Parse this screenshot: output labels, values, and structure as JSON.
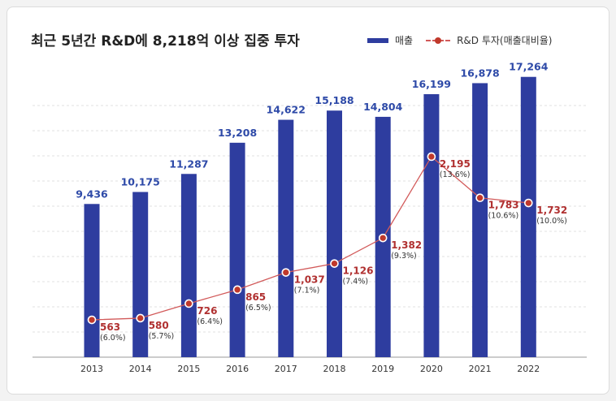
{
  "title": "최근 5년간 R&D에 8,218억 이상 집중 투자",
  "legend": {
    "revenue": "매출",
    "rd": "R&D 투자(매출대비율)"
  },
  "colors": {
    "bar": "#2e3d9f",
    "bar_label": "#2e4aa8",
    "line": "#d25a5a",
    "rd_label": "#b03030"
  },
  "chart_data": {
    "type": "bar",
    "categories": [
      "2013",
      "2014",
      "2015",
      "2016",
      "2017",
      "2018",
      "2019",
      "2020",
      "2021",
      "2022"
    ],
    "series": [
      {
        "name": "매출",
        "type": "bar",
        "values": [
          9436,
          10175,
          11287,
          13208,
          14622,
          15188,
          14804,
          16199,
          16878,
          17264
        ],
        "labels": [
          "9,436",
          "10,175",
          "11,287",
          "13,208",
          "14,622",
          "15,188",
          "14,804",
          "16,199",
          "16,878",
          "17,264"
        ]
      },
      {
        "name": "R&D 투자(매출대비율)",
        "type": "line",
        "values": [
          563,
          580,
          726,
          865,
          1037,
          1126,
          1382,
          2195,
          1783,
          1732
        ],
        "labels": [
          "563",
          "580",
          "726",
          "865",
          "1,037",
          "1,126",
          "1,382",
          "2,195",
          "1,783",
          "1,732"
        ],
        "ratio_labels": [
          "(6.0%)",
          "(5.7%)",
          "(6.4%)",
          "(6.5%)",
          "(7.1%)",
          "(7.4%)",
          "(9.3%)",
          "(13.6%)",
          "(10.6%)",
          "(10.0%)"
        ]
      }
    ],
    "grid": "horizontal dashed"
  }
}
